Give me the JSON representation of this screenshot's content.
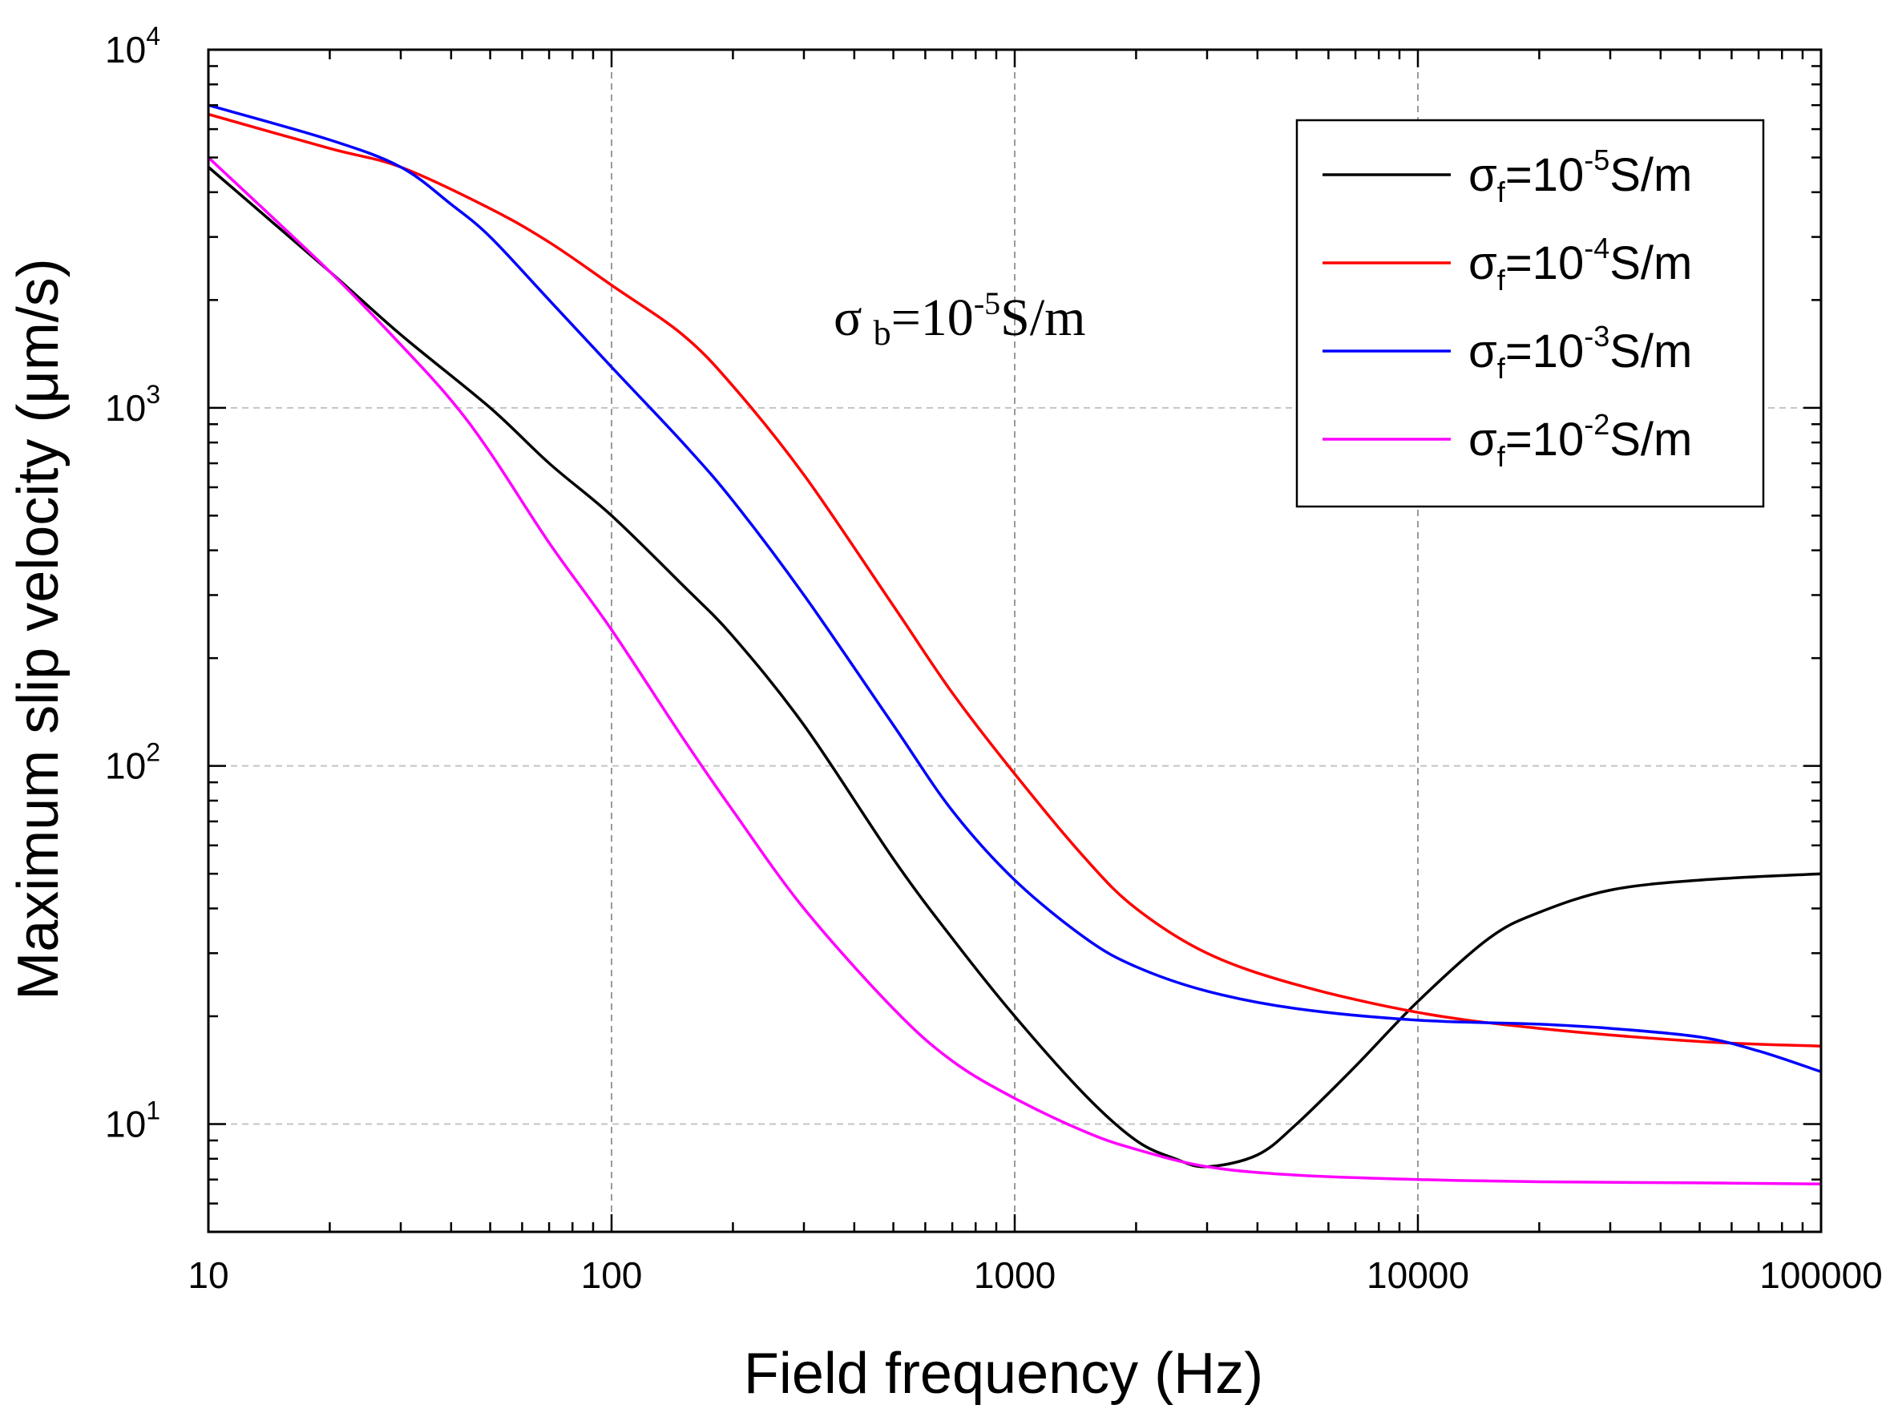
{
  "chart_data": {
    "type": "line",
    "xlabel": "Field frequency (Hz)",
    "ylabel": "Maximum slip velocity (μm/s)",
    "xscale": "log",
    "yscale": "log",
    "xlim": [
      10,
      100000
    ],
    "ylim": [
      5,
      10000
    ],
    "grid": true,
    "legend_position": "top-right",
    "x_ticks": [
      {
        "value": 10,
        "label": "10"
      },
      {
        "value": 100,
        "label": "100"
      },
      {
        "value": 1000,
        "label": "1000"
      },
      {
        "value": 10000,
        "label": "10000"
      },
      {
        "value": 100000,
        "label": "100000"
      }
    ],
    "y_ticks": [
      {
        "value": 10,
        "base": "10",
        "exp": "1"
      },
      {
        "value": 100,
        "base": "10",
        "exp": "2"
      },
      {
        "value": 1000,
        "base": "10",
        "exp": "3"
      },
      {
        "value": 10000,
        "base": "10",
        "exp": "4"
      }
    ],
    "annotation": {
      "symbol": "σ",
      "sub": "b",
      "mid": "=10",
      "sup": "-5",
      "tail": "S/m"
    },
    "series": [
      {
        "name": "σf=10-5S/m",
        "legend": {
          "symbol": "σ",
          "sub": "f",
          "mid": "=10",
          "sup": "-5",
          "tail": "S/m"
        },
        "color": "#000000",
        "x": [
          10,
          20,
          30,
          50,
          70,
          100,
          150,
          200,
          300,
          500,
          700,
          1000,
          1500,
          2000,
          2500,
          3000,
          4000,
          5000,
          7000,
          10000,
          15000,
          20000,
          30000,
          50000,
          100000
        ],
        "y": [
          4700,
          2400,
          1600,
          1000,
          700,
          500,
          320,
          230,
          130,
          55,
          33,
          20,
          12,
          9,
          8,
          7.6,
          8.2,
          10,
          14.5,
          22,
          33,
          39,
          45,
          48,
          50
        ]
      },
      {
        "name": "σf=10-4S/m",
        "legend": {
          "symbol": "σ",
          "sub": "f",
          "mid": "=10",
          "sup": "-4",
          "tail": "S/m"
        },
        "color": "#ff0000",
        "x": [
          10,
          20,
          30,
          50,
          70,
          100,
          150,
          200,
          300,
          500,
          700,
          1000,
          1500,
          2000,
          3000,
          5000,
          10000,
          20000,
          50000,
          100000
        ],
        "y": [
          6600,
          5300,
          4700,
          3600,
          2900,
          2200,
          1600,
          1150,
          650,
          280,
          160,
          95,
          55,
          40,
          30,
          24.5,
          20.5,
          18.5,
          17,
          16.5
        ]
      },
      {
        "name": "σf=10-3S/m",
        "legend": {
          "symbol": "σ",
          "sub": "f",
          "mid": "=10",
          "sup": "-3",
          "tail": "S/m"
        },
        "color": "#0000ff",
        "x": [
          10,
          20,
          30,
          40,
          50,
          70,
          100,
          150,
          200,
          300,
          500,
          700,
          1000,
          1500,
          2000,
          3000,
          5000,
          10000,
          20000,
          30000,
          50000,
          70000,
          100000
        ],
        "y": [
          7000,
          5600,
          4700,
          3700,
          3000,
          2000,
          1300,
          800,
          550,
          300,
          130,
          75,
          48,
          33,
          27.5,
          23.5,
          21,
          19.5,
          19,
          18.5,
          17.5,
          16,
          14
        ]
      },
      {
        "name": "σf=10-2S/m",
        "legend": {
          "symbol": "σ",
          "sub": "f",
          "mid": "=10",
          "sup": "-2",
          "tail": "S/m"
        },
        "color": "#ff00ff",
        "x": [
          10,
          20,
          30,
          40,
          50,
          70,
          100,
          150,
          200,
          300,
          500,
          700,
          1000,
          1500,
          2000,
          3000,
          5000,
          10000,
          20000,
          50000,
          100000
        ],
        "y": [
          5000,
          2400,
          1500,
          1050,
          750,
          420,
          240,
          120,
          75,
          40,
          21,
          15,
          11.8,
          9.5,
          8.5,
          7.6,
          7.2,
          7.0,
          6.9,
          6.85,
          6.8
        ]
      }
    ]
  }
}
